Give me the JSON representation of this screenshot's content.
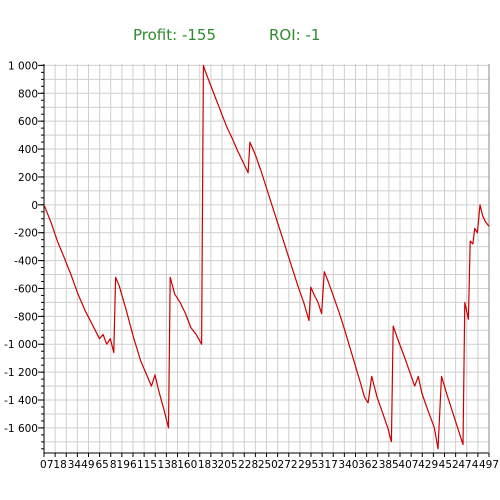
{
  "header": {
    "profit_label": "Profit:",
    "profit_value": "-155",
    "roi_label": "ROI:",
    "roi_value": "-1",
    "color": "#2e8b2e"
  },
  "chart_data": {
    "type": "line",
    "title": "",
    "xlabel": "",
    "ylabel": "",
    "ylim": [
      -1780,
      1010
    ],
    "xlim": [
      0,
      497
    ],
    "grid": true,
    "line_color": "#cc0000",
    "y_ticks": [
      1000,
      800,
      600,
      400,
      200,
      0,
      -200,
      -400,
      -600,
      -800,
      -1000,
      -1200,
      -1400,
      -1600
    ],
    "y_tick_labels": [
      "1 000",
      "800",
      "600",
      "400",
      "200",
      "0",
      "-200",
      "-400",
      "-600",
      "-800",
      "-1 000",
      "-1 200",
      "-1 400",
      "-1 600"
    ],
    "x_ticks": [
      0,
      7,
      18,
      34,
      49,
      65,
      81,
      96,
      115,
      138,
      160,
      183,
      205,
      228,
      250,
      272,
      295,
      317,
      340,
      362,
      385,
      407,
      429,
      452,
      474,
      497
    ],
    "x_tick_labels": [
      "0",
      "7",
      "18",
      "34",
      "49",
      "65",
      "81",
      "96",
      "115",
      "138",
      "160",
      "183",
      "205",
      "228",
      "250",
      "272",
      "295",
      "317",
      "340",
      "362",
      "385",
      "407",
      "429",
      "452",
      "474",
      "497"
    ],
    "series": [
      {
        "points": [
          [
            0,
            0
          ],
          [
            8,
            -130
          ],
          [
            15,
            -260
          ],
          [
            22,
            -370
          ],
          [
            30,
            -500
          ],
          [
            38,
            -640
          ],
          [
            46,
            -760
          ],
          [
            54,
            -860
          ],
          [
            62,
            -960
          ],
          [
            66,
            -930
          ],
          [
            70,
            -1000
          ],
          [
            74,
            -960
          ],
          [
            78,
            -1060
          ],
          [
            80,
            -520
          ],
          [
            84,
            -580
          ],
          [
            92,
            -760
          ],
          [
            100,
            -950
          ],
          [
            108,
            -1120
          ],
          [
            116,
            -1240
          ],
          [
            120,
            -1300
          ],
          [
            124,
            -1220
          ],
          [
            128,
            -1330
          ],
          [
            134,
            -1470
          ],
          [
            139,
            -1600
          ],
          [
            141,
            -520
          ],
          [
            146,
            -640
          ],
          [
            152,
            -700
          ],
          [
            158,
            -780
          ],
          [
            164,
            -880
          ],
          [
            170,
            -930
          ],
          [
            176,
            -1000
          ],
          [
            177,
            0
          ],
          [
            178,
            1000
          ],
          [
            180,
            960
          ],
          [
            186,
            860
          ],
          [
            192,
            760
          ],
          [
            198,
            660
          ],
          [
            204,
            560
          ],
          [
            210,
            480
          ],
          [
            216,
            390
          ],
          [
            222,
            310
          ],
          [
            228,
            230
          ],
          [
            230,
            450
          ],
          [
            236,
            360
          ],
          [
            242,
            250
          ],
          [
            248,
            130
          ],
          [
            254,
            10
          ],
          [
            260,
            -110
          ],
          [
            266,
            -230
          ],
          [
            272,
            -350
          ],
          [
            278,
            -470
          ],
          [
            284,
            -590
          ],
          [
            290,
            -700
          ],
          [
            296,
            -830
          ],
          [
            298,
            -590
          ],
          [
            302,
            -650
          ],
          [
            306,
            -700
          ],
          [
            310,
            -780
          ],
          [
            313,
            -480
          ],
          [
            318,
            -560
          ],
          [
            324,
            -670
          ],
          [
            330,
            -780
          ],
          [
            336,
            -900
          ],
          [
            342,
            -1030
          ],
          [
            348,
            -1160
          ],
          [
            354,
            -1290
          ],
          [
            358,
            -1380
          ],
          [
            362,
            -1420
          ],
          [
            366,
            -1230
          ],
          [
            372,
            -1380
          ],
          [
            378,
            -1490
          ],
          [
            384,
            -1600
          ],
          [
            388,
            -1700
          ],
          [
            390,
            -870
          ],
          [
            396,
            -980
          ],
          [
            402,
            -1080
          ],
          [
            408,
            -1190
          ],
          [
            414,
            -1300
          ],
          [
            418,
            -1230
          ],
          [
            422,
            -1350
          ],
          [
            428,
            -1460
          ],
          [
            432,
            -1530
          ],
          [
            436,
            -1600
          ],
          [
            440,
            -1750
          ],
          [
            444,
            -1230
          ],
          [
            450,
            -1360
          ],
          [
            456,
            -1480
          ],
          [
            462,
            -1600
          ],
          [
            468,
            -1720
          ],
          [
            470,
            -700
          ],
          [
            474,
            -820
          ],
          [
            476,
            -260
          ],
          [
            479,
            -280
          ],
          [
            481,
            -170
          ],
          [
            484,
            -200
          ],
          [
            487,
            0
          ],
          [
            490,
            -80
          ],
          [
            493,
            -120
          ],
          [
            497,
            -155
          ]
        ]
      }
    ]
  }
}
